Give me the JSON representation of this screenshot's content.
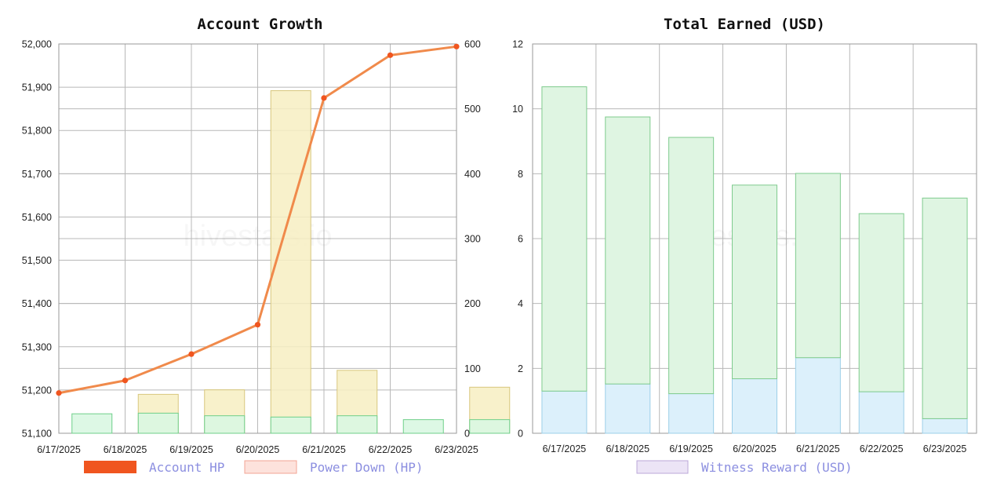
{
  "watermark": "hivestats.io",
  "chart_data": [
    {
      "type": "bar+line",
      "title": "Account Growth",
      "categories": [
        "6/17/2025",
        "6/18/2025",
        "6/19/2025",
        "6/20/2025",
        "6/21/2025",
        "6/22/2025",
        "6/23/2025"
      ],
      "y_left": {
        "range": [
          51100,
          52000
        ],
        "ticks": [
          "51,100",
          "51,200",
          "51,300",
          "51,400",
          "51,500",
          "51,600",
          "51,700",
          "51,800",
          "51,900",
          "52,000"
        ]
      },
      "y_right": {
        "range": [
          0,
          600
        ],
        "ticks": [
          "0",
          "100",
          "200",
          "300",
          "400",
          "500",
          "600"
        ]
      },
      "series": [
        {
          "name": "Account HP",
          "type": "line",
          "axis": "left",
          "color": "#f0551f",
          "line_color": "#f08a4b",
          "values": [
            51193,
            51222,
            51283,
            51351,
            51875,
            51974,
            51994
          ]
        },
        {
          "name": "Power Down (HP)",
          "type": "bar",
          "axis": "right",
          "color": "#f7eec2",
          "stroke": "#d8c77e",
          "values": [
            0,
            60,
            67,
            528,
            97,
            0,
            71
          ]
        },
        {
          "name": "",
          "type": "bar",
          "axis": "right",
          "color": "#d9f7e2",
          "stroke": "#6fcf8a",
          "values": [
            30,
            31,
            27,
            25,
            27,
            21,
            21
          ]
        }
      ],
      "grid": true,
      "legend": "bottom"
    },
    {
      "type": "stacked-bar",
      "title": "Total Earned (USD)",
      "categories": [
        "6/17/2025",
        "6/18/2025",
        "6/19/2025",
        "6/20/2025",
        "6/21/2025",
        "6/22/2025",
        "6/23/2025"
      ],
      "y": {
        "range": [
          0,
          12
        ],
        "ticks": [
          "0",
          "2",
          "4",
          "6",
          "8",
          "10",
          "12"
        ]
      },
      "series": [
        {
          "name": "",
          "color": "#dcf0fb",
          "stroke": "#9ccfe8",
          "values": [
            1.3,
            1.52,
            1.22,
            1.68,
            2.33,
            1.28,
            0.45
          ]
        },
        {
          "name": "",
          "color": "#dff5e2",
          "stroke": "#7fcb8e",
          "values": [
            9.38,
            8.23,
            7.9,
            5.97,
            5.68,
            5.49,
            6.8
          ]
        },
        {
          "name": "Witness Reward (USD)",
          "color": "#ece4f6",
          "stroke": "#bba7d8",
          "values": [
            0,
            0,
            0,
            0,
            0,
            0,
            0
          ]
        }
      ],
      "grid": true,
      "legend": "bottom"
    }
  ]
}
